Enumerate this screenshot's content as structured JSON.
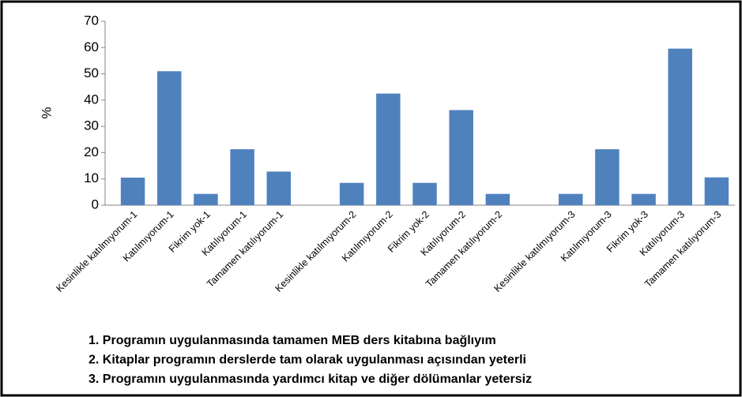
{
  "chart_data": {
    "type": "bar",
    "ylabel": "%",
    "categories": [
      "Kesinlikle katılmıyorum-1",
      "Katılmıyorum-1",
      "Fikrim yok-1",
      "Katılıyorum-1",
      "Tamamen katılıyorum-1",
      null,
      "Kesinlikle katılmıyorum-2",
      "Katılmıyorum-2",
      "Fikrim yok-2",
      "Katılıyorum-2",
      "Tamamen katılıyorum-2",
      null,
      "Kesinlikle katılmıyorum-3",
      "Katılmıyorum-3",
      "Fikrim yok-3",
      "Katılıyorum-3",
      "Tamamen katılıyorum-3"
    ],
    "values": [
      10.5,
      51,
      4.3,
      21.3,
      12.8,
      null,
      8.5,
      42.5,
      8.5,
      36.2,
      4.3,
      null,
      4.3,
      21.3,
      4.3,
      59.6,
      10.6
    ],
    "color": "#4f81bd",
    "ylim": [
      0,
      70
    ],
    "yticks": [
      0,
      10,
      20,
      30,
      40,
      50,
      60,
      70
    ],
    "grid": false,
    "notes": [
      "1. Programın uygulanmasında tamamen MEB ders kitabına bağlıyım",
      "2. Kitaplar programın derslerde tam olarak uygulanması açısından yeterli",
      "3. Programın uygulanmasında yardımcı kitap ve diğer dölümanlar yetersiz"
    ]
  }
}
